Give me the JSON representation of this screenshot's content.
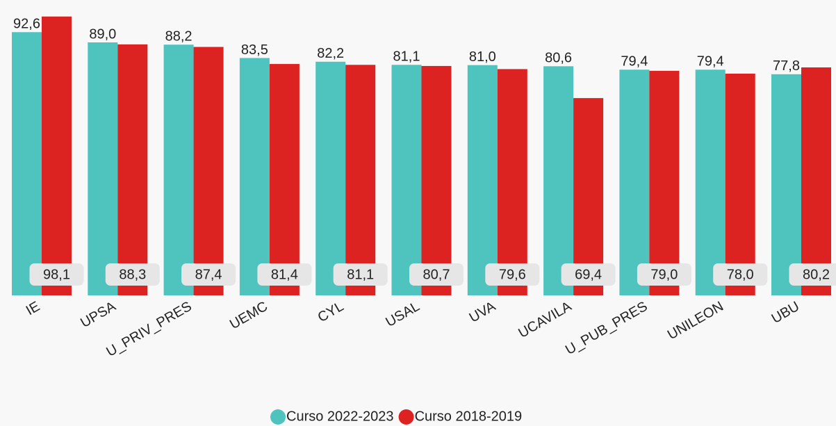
{
  "chart_data": {
    "type": "bar",
    "categories": [
      "IE",
      "UPSA",
      "U_PRIV_PRES",
      "UEMC",
      "CYL",
      "USAL",
      "UVA",
      "UCAVILA",
      "U_PUB_PRES",
      "UNILEON",
      "UBU"
    ],
    "series": [
      {
        "name": "Curso 2022-2023",
        "color": "#4fc3be",
        "values": [
          92.6,
          89.0,
          88.2,
          83.5,
          82.2,
          81.1,
          81.0,
          80.6,
          79.4,
          79.4,
          77.8
        ],
        "value_labels": [
          "92,6",
          "89,0",
          "88,2",
          "83,5",
          "82,2",
          "81,1",
          "81,0",
          "80,6",
          "79,4",
          "79,4",
          "77,8"
        ]
      },
      {
        "name": "Curso 2018-2019",
        "color": "#dd2222",
        "values": [
          98.1,
          88.3,
          87.4,
          81.4,
          81.1,
          80.7,
          79.6,
          69.4,
          79.0,
          78.0,
          80.2
        ],
        "value_labels": [
          "98,1",
          "88,3",
          "87,4",
          "81,4",
          "81,1",
          "80,7",
          "79,6",
          "69,4",
          "79,0",
          "78,0",
          "80,2"
        ]
      }
    ],
    "ylim": [
      0,
      100
    ]
  }
}
